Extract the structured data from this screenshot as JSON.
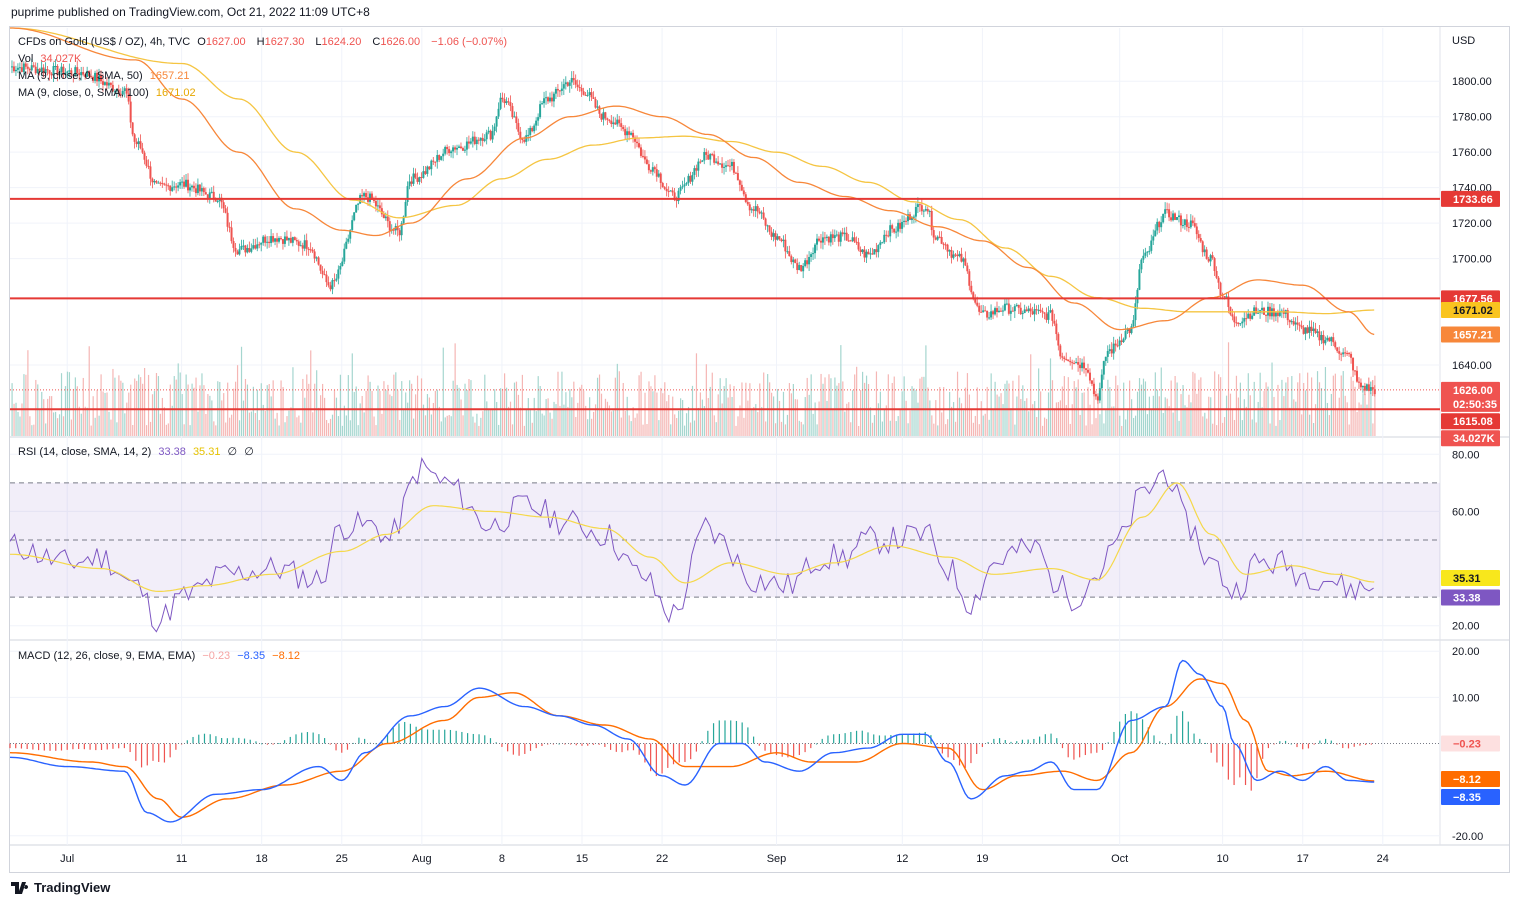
{
  "header": {
    "published": "puprime published on TradingView.com, Oct 21, 2022 11:09 UTC+8"
  },
  "footer": {
    "brand": "TradingView"
  },
  "legend": {
    "price": {
      "symbol": "CFDs on Gold (US$ / OZ), 4h, TVC",
      "o_label": "O",
      "o": "1627.00",
      "h_label": "H",
      "h": "1627.30",
      "l_label": "L",
      "l": "1624.20",
      "c_label": "C",
      "c": "1626.00",
      "chg": "−1.06 (−0.07%)"
    },
    "vol": {
      "label": "Vol",
      "value": "34.027K"
    },
    "ma50": {
      "label": "MA (9, close, 0, SMA, 50)",
      "value": "1657.21"
    },
    "ma100": {
      "label": "MA (9, close, 0, SMA, 100)",
      "value": "1671.02"
    },
    "rsi": {
      "label": "RSI (14, close, SMA, 14, 2)",
      "v1": "33.38",
      "v2": "35.31",
      "v3": "∅",
      "v4": "∅"
    },
    "macd": {
      "label": "MACD (12, 26, close, 9, EMA, EMA)",
      "hist": "−0.23",
      "macd": "−8.35",
      "signal": "−8.12"
    }
  },
  "colors": {
    "up": "#26a69a",
    "down": "#ef5350",
    "ma50": "#f7873a",
    "ma100": "#f5c542",
    "hline": "#e53935",
    "rsi": "#7e57c2",
    "rsi_ma": "#f5d84a",
    "macd": "#2962ff",
    "signal": "#ff6d00",
    "grid": "#f0f3fa"
  },
  "chart_data": [
    {
      "type": "line",
      "panel": "price",
      "title": "CFDs on Gold (US$ / OZ), 4h, TVC",
      "ylabel": "USD",
      "ylim": [
        1600,
        1830
      ],
      "y_ticks": [
        "1800.00",
        "1780.00",
        "1760.00",
        "1740.00",
        "1720.00",
        "1700.00",
        "1640.00"
      ],
      "x_ticks": [
        "Jul",
        "11",
        "18",
        "25",
        "Aug",
        "8",
        "15",
        "22",
        "Sep",
        "12",
        "19",
        "Oct",
        "10",
        "17",
        "24"
      ],
      "x_tick_day": [
        0,
        10,
        17,
        24,
        31,
        38,
        45,
        52,
        62,
        73,
        80,
        92,
        101,
        108,
        115
      ],
      "day_range": [
        -5,
        120
      ],
      "candle_close_anchors": [
        [
          -5,
          1808
        ],
        [
          1,
          1805
        ],
        [
          5,
          1795
        ],
        [
          6,
          1765
        ],
        [
          8,
          1740
        ],
        [
          10,
          1742
        ],
        [
          13,
          1735
        ],
        [
          15,
          1705
        ],
        [
          18,
          1712
        ],
        [
          21,
          1708
        ],
        [
          23,
          1685
        ],
        [
          26,
          1735
        ],
        [
          29,
          1715
        ],
        [
          30,
          1745
        ],
        [
          34,
          1763
        ],
        [
          37,
          1770
        ],
        [
          38,
          1790
        ],
        [
          40,
          1768
        ],
        [
          42,
          1790
        ],
        [
          44,
          1800
        ],
        [
          45,
          1795
        ],
        [
          47,
          1780
        ],
        [
          49,
          1772
        ],
        [
          51,
          1752
        ],
        [
          53,
          1735
        ],
        [
          56,
          1758
        ],
        [
          58,
          1752
        ],
        [
          60,
          1728
        ],
        [
          62,
          1712
        ],
        [
          64,
          1695
        ],
        [
          66,
          1712
        ],
        [
          68,
          1712
        ],
        [
          70,
          1702
        ],
        [
          72,
          1716
        ],
        [
          75,
          1730
        ],
        [
          76,
          1712
        ],
        [
          78,
          1700
        ],
        [
          80,
          1668
        ],
        [
          82,
          1672
        ],
        [
          84,
          1670
        ],
        [
          86,
          1668
        ],
        [
          87,
          1645
        ],
        [
          89,
          1640
        ],
        [
          90,
          1622
        ],
        [
          91,
          1648
        ],
        [
          93,
          1660
        ],
        [
          94,
          1700
        ],
        [
          96,
          1725
        ],
        [
          98,
          1720
        ],
        [
          100,
          1700
        ],
        [
          101,
          1680
        ],
        [
          102,
          1665
        ],
        [
          104,
          1670
        ],
        [
          106,
          1670
        ],
        [
          108,
          1660
        ],
        [
          110,
          1655
        ],
        [
          112,
          1645
        ],
        [
          113,
          1628
        ],
        [
          114.3,
          1626
        ]
      ],
      "ma50_anchors": [
        [
          -5,
          1830
        ],
        [
          6,
          1812
        ],
        [
          10,
          1790
        ],
        [
          15,
          1760
        ],
        [
          20,
          1728
        ],
        [
          24,
          1716
        ],
        [
          27,
          1713
        ],
        [
          30,
          1720
        ],
        [
          35,
          1745
        ],
        [
          40,
          1768
        ],
        [
          44,
          1780
        ],
        [
          48,
          1786
        ],
        [
          52,
          1780
        ],
        [
          56,
          1770
        ],
        [
          60,
          1757
        ],
        [
          64,
          1743
        ],
        [
          68,
          1735
        ],
        [
          72,
          1727
        ],
        [
          76,
          1718
        ],
        [
          80,
          1710
        ],
        [
          84,
          1695
        ],
        [
          88,
          1675
        ],
        [
          92,
          1660
        ],
        [
          96,
          1665
        ],
        [
          100,
          1678
        ],
        [
          104,
          1688
        ],
        [
          108,
          1685
        ],
        [
          112,
          1670
        ],
        [
          114.3,
          1657.21
        ]
      ],
      "ma100_anchors": [
        [
          -5,
          1830
        ],
        [
          10,
          1810
        ],
        [
          15,
          1790
        ],
        [
          20,
          1760
        ],
        [
          25,
          1733
        ],
        [
          29,
          1723
        ],
        [
          34,
          1730
        ],
        [
          38,
          1745
        ],
        [
          42,
          1756
        ],
        [
          46,
          1764
        ],
        [
          50,
          1768
        ],
        [
          54,
          1769
        ],
        [
          58,
          1766
        ],
        [
          62,
          1760
        ],
        [
          66,
          1752
        ],
        [
          70,
          1743
        ],
        [
          74,
          1732
        ],
        [
          78,
          1722
        ],
        [
          82,
          1706
        ],
        [
          86,
          1690
        ],
        [
          90,
          1678
        ],
        [
          94,
          1672
        ],
        [
          98,
          1670
        ],
        [
          102,
          1670
        ],
        [
          106,
          1670
        ],
        [
          110,
          1669
        ],
        [
          114.3,
          1671.02
        ]
      ],
      "levels": [
        1733.66,
        1677.56,
        1615.08
      ],
      "last": 1626.0,
      "countdown": "02:50:35",
      "volume": "34.027K",
      "ma50_last": 1657.21,
      "ma100_last": 1671.02
    },
    {
      "type": "line",
      "panel": "rsi",
      "title": "RSI (14, close, SMA, 14, 2)",
      "ylim": [
        15,
        85
      ],
      "y_ticks": [
        "80.00",
        "60.00",
        "20.00"
      ],
      "bands": [
        70,
        50,
        30
      ],
      "anchors": [
        [
          -5,
          48
        ],
        [
          0,
          42
        ],
        [
          3,
          44
        ],
        [
          6,
          34
        ],
        [
          8,
          22
        ],
        [
          10,
          30
        ],
        [
          14,
          38
        ],
        [
          18,
          40
        ],
        [
          22,
          36
        ],
        [
          24,
          55
        ],
        [
          27,
          55
        ],
        [
          28,
          50
        ],
        [
          31,
          75
        ],
        [
          33,
          70
        ],
        [
          37,
          55
        ],
        [
          40,
          62
        ],
        [
          44,
          56
        ],
        [
          47,
          52
        ],
        [
          50,
          38
        ],
        [
          53,
          24
        ],
        [
          56,
          55
        ],
        [
          57,
          50
        ],
        [
          60,
          36
        ],
        [
          63,
          34
        ],
        [
          66,
          44
        ],
        [
          68,
          44
        ],
        [
          70,
          50
        ],
        [
          72,
          50
        ],
        [
          75,
          52
        ],
        [
          77,
          40
        ],
        [
          79,
          28
        ],
        [
          81,
          42
        ],
        [
          83,
          46
        ],
        [
          85,
          47
        ],
        [
          86,
          36
        ],
        [
          88,
          30
        ],
        [
          90,
          38
        ],
        [
          92,
          50
        ],
        [
          94,
          66
        ],
        [
          96,
          74
        ],
        [
          98,
          55
        ],
        [
          100,
          42
        ],
        [
          102,
          32
        ],
        [
          104,
          42
        ],
        [
          106,
          42
        ],
        [
          108,
          38
        ],
        [
          110,
          37
        ],
        [
          112,
          33
        ],
        [
          114.3,
          33.38
        ]
      ],
      "ma_anchors": [
        [
          -5,
          45
        ],
        [
          3,
          40
        ],
        [
          8,
          32
        ],
        [
          12,
          34
        ],
        [
          18,
          38
        ],
        [
          24,
          46
        ],
        [
          28,
          52
        ],
        [
          32,
          62
        ],
        [
          37,
          60
        ],
        [
          42,
          58
        ],
        [
          47,
          54
        ],
        [
          51,
          44
        ],
        [
          54,
          35
        ],
        [
          58,
          42
        ],
        [
          63,
          38
        ],
        [
          67,
          42
        ],
        [
          72,
          48
        ],
        [
          77,
          44
        ],
        [
          81,
          38
        ],
        [
          86,
          40
        ],
        [
          90,
          36
        ],
        [
          94,
          58
        ],
        [
          97,
          70
        ],
        [
          100,
          52
        ],
        [
          103,
          38
        ],
        [
          107,
          41
        ],
        [
          111,
          38
        ],
        [
          114.3,
          35.31
        ]
      ],
      "last": 33.38,
      "ma_last": 35.31
    },
    {
      "type": "line",
      "panel": "macd",
      "title": "MACD (12, 26, close, 9, EMA, EMA)",
      "ylim": [
        -22,
        22
      ],
      "y_ticks": [
        "20.00",
        "10.00",
        "-20.00"
      ],
      "macd_anchors": [
        [
          -5,
          -3
        ],
        [
          0,
          -5
        ],
        [
          5,
          -6
        ],
        [
          7,
          -15
        ],
        [
          9,
          -17
        ],
        [
          13,
          -11
        ],
        [
          17,
          -10
        ],
        [
          22,
          -5
        ],
        [
          24,
          -8
        ],
        [
          26,
          -2
        ],
        [
          30,
          6
        ],
        [
          33,
          8
        ],
        [
          36,
          12
        ],
        [
          40,
          8
        ],
        [
          43,
          6
        ],
        [
          46,
          4
        ],
        [
          49,
          1
        ],
        [
          52,
          -7
        ],
        [
          54,
          -9
        ],
        [
          57,
          0
        ],
        [
          59,
          0
        ],
        [
          61,
          -4
        ],
        [
          64,
          -6
        ],
        [
          67,
          -2
        ],
        [
          70,
          -1
        ],
        [
          73,
          2
        ],
        [
          75,
          2
        ],
        [
          77,
          -4
        ],
        [
          79,
          -12
        ],
        [
          82,
          -7
        ],
        [
          84,
          -6
        ],
        [
          86,
          -4
        ],
        [
          88,
          -10
        ],
        [
          90,
          -10
        ],
        [
          93,
          5
        ],
        [
          96,
          8
        ],
        [
          97.5,
          18
        ],
        [
          99,
          15
        ],
        [
          101,
          8
        ],
        [
          102,
          0
        ],
        [
          104,
          -8
        ],
        [
          106,
          -6
        ],
        [
          108,
          -8
        ],
        [
          110,
          -5
        ],
        [
          112,
          -8
        ],
        [
          114.3,
          -8.35
        ]
      ],
      "signal_anchors": [
        [
          -5,
          -2
        ],
        [
          2,
          -4
        ],
        [
          5,
          -5
        ],
        [
          8,
          -12
        ],
        [
          10,
          -16
        ],
        [
          14,
          -12
        ],
        [
          19,
          -9
        ],
        [
          24,
          -6
        ],
        [
          28,
          0
        ],
        [
          33,
          5
        ],
        [
          36,
          10
        ],
        [
          39,
          11
        ],
        [
          43,
          6
        ],
        [
          47,
          4
        ],
        [
          51,
          1
        ],
        [
          54,
          -5
        ],
        [
          58,
          -5
        ],
        [
          62,
          -2
        ],
        [
          65,
          -4
        ],
        [
          69,
          -4
        ],
        [
          73,
          0
        ],
        [
          77,
          -1
        ],
        [
          80,
          -10
        ],
        [
          83,
          -7
        ],
        [
          87,
          -6
        ],
        [
          90,
          -8
        ],
        [
          93,
          -2
        ],
        [
          96,
          8
        ],
        [
          99,
          14
        ],
        [
          101,
          13
        ],
        [
          103,
          5
        ],
        [
          105,
          -6
        ],
        [
          107,
          -7
        ],
        [
          110,
          -6
        ],
        [
          114.3,
          -8.12
        ]
      ],
      "hist_last": -0.23,
      "macd_last": -8.35,
      "signal_last": -8.12
    }
  ]
}
